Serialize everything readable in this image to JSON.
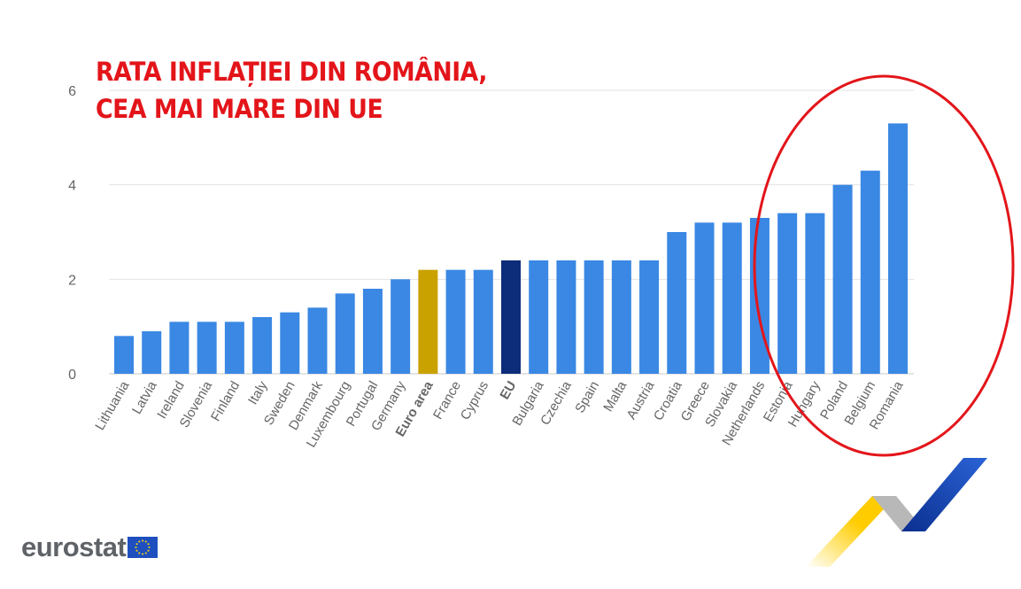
{
  "title_lines": [
    "RATA INFLAȚIEI DIN ROMÂNIA,",
    "CEA MAI MARE DIN UE"
  ],
  "logo": "eurostat",
  "colors": {
    "bar": "#3a88e3",
    "euro_area": "#c9a200",
    "eu": "#0d2d7a",
    "title": "#e3151a",
    "ellipse": "#e3151a"
  },
  "chart_data": {
    "type": "bar",
    "title": "",
    "xlabel": "",
    "ylabel": "",
    "ylim": [
      0,
      6
    ],
    "yticks": [
      0,
      2,
      4,
      6
    ],
    "grid": true,
    "highlighted": {
      "Euro area": "euro_area",
      "EU": "eu"
    },
    "categories": [
      "Lithuania",
      "Latvia",
      "Ireland",
      "Slovenia",
      "Finland",
      "Italy",
      "Sweden",
      "Denmark",
      "Luxembourg",
      "Portugal",
      "Germany",
      "Euro area",
      "France",
      "Cyprus",
      "EU",
      "Bulgaria",
      "Czechia",
      "Spain",
      "Malta",
      "Austria",
      "Croatia",
      "Greece",
      "Slovakia",
      "Netherlands",
      "Estonia",
      "Hungary",
      "Poland",
      "Belgium",
      "Romania"
    ],
    "values": [
      0.8,
      0.9,
      1.1,
      1.1,
      1.1,
      1.2,
      1.3,
      1.4,
      1.7,
      1.8,
      2.0,
      2.2,
      2.2,
      2.2,
      2.4,
      2.4,
      2.4,
      2.4,
      2.4,
      2.4,
      3.0,
      3.2,
      3.2,
      3.3,
      3.4,
      3.4,
      4.0,
      4.3,
      5.3
    ]
  }
}
